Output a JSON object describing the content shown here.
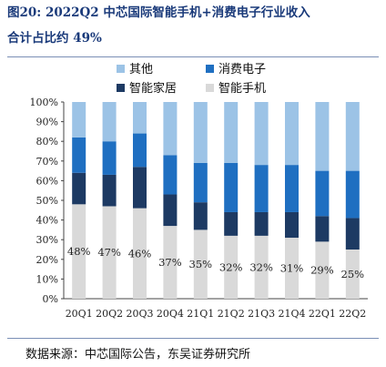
{
  "caption": {
    "line1": "图20:  2022Q2  中芯国际智能手机+消费电子行业收入",
    "line2": "合计占比约 49%"
  },
  "source": "数据来源：中芯国际公告，东吴证券研究所",
  "colors": {
    "other": "#9cc3e6",
    "consumer": "#1f6fc1",
    "smarthome": "#1d3a63",
    "smartphone": "#d9d9d9",
    "caption": "#1a3a7a"
  },
  "chart_data": {
    "type": "bar",
    "stacked": true,
    "categories": [
      "20Q1",
      "20Q2",
      "20Q3",
      "20Q4",
      "21Q1",
      "21Q2",
      "21Q3",
      "21Q4",
      "22Q1",
      "22Q2"
    ],
    "series": [
      {
        "name": "智能手机",
        "values": [
          48,
          47,
          46,
          37,
          35,
          32,
          32,
          31,
          29,
          25
        ]
      },
      {
        "name": "智能家居",
        "values": [
          16,
          16,
          21,
          16,
          14,
          12,
          12,
          13,
          13,
          16
        ]
      },
      {
        "name": "消费电子",
        "values": [
          18,
          17,
          17,
          20,
          20,
          25,
          24,
          24,
          23,
          24
        ]
      },
      {
        "name": "其他",
        "values": [
          18,
          20,
          16,
          27,
          31,
          31,
          32,
          32,
          35,
          35
        ]
      }
    ],
    "data_labels": [
      "48%",
      "47%",
      "46%",
      "37%",
      "35%",
      "32%",
      "32%",
      "31%",
      "29%",
      "25%"
    ],
    "yticks": [
      "0%",
      "10%",
      "20%",
      "30%",
      "40%",
      "50%",
      "60%",
      "70%",
      "80%",
      "90%",
      "100%"
    ],
    "ylim": [
      0,
      100
    ],
    "legend": {
      "placement": "top-left",
      "order": [
        "其他",
        "消费电子",
        "智能家居",
        "智能手机"
      ]
    },
    "grid": false
  }
}
